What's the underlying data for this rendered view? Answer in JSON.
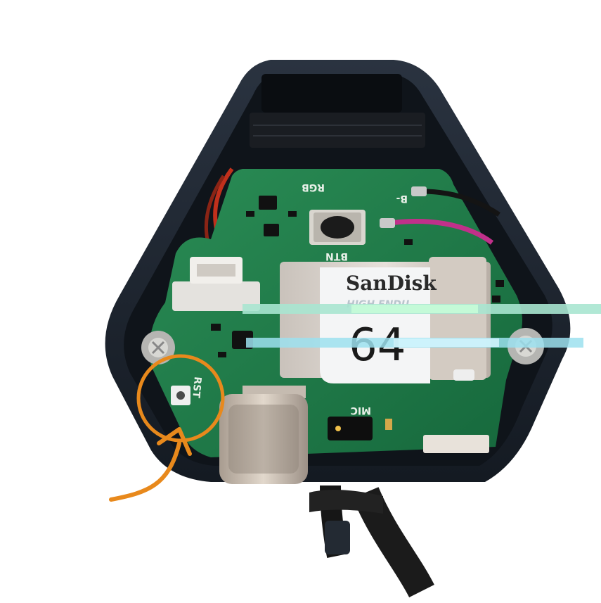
{
  "silkscreen": {
    "rgb": "RGB",
    "btn": "BTN",
    "rst": "RST",
    "mic": "MIC",
    "b_minus": "B-"
  },
  "sd_card": {
    "brand": "SanDisk",
    "line": "HIGH ENDU",
    "capacity": "64"
  },
  "colors": {
    "background": "#ffffff",
    "case": "#1e2530",
    "pcb": "#1f7a4a",
    "annotation": "#e8891c",
    "wire_red": "#c0301c",
    "wire_magenta": "#c0308a"
  },
  "annotation": {
    "shape": "circle-with-arrow",
    "target": "reset-button"
  }
}
